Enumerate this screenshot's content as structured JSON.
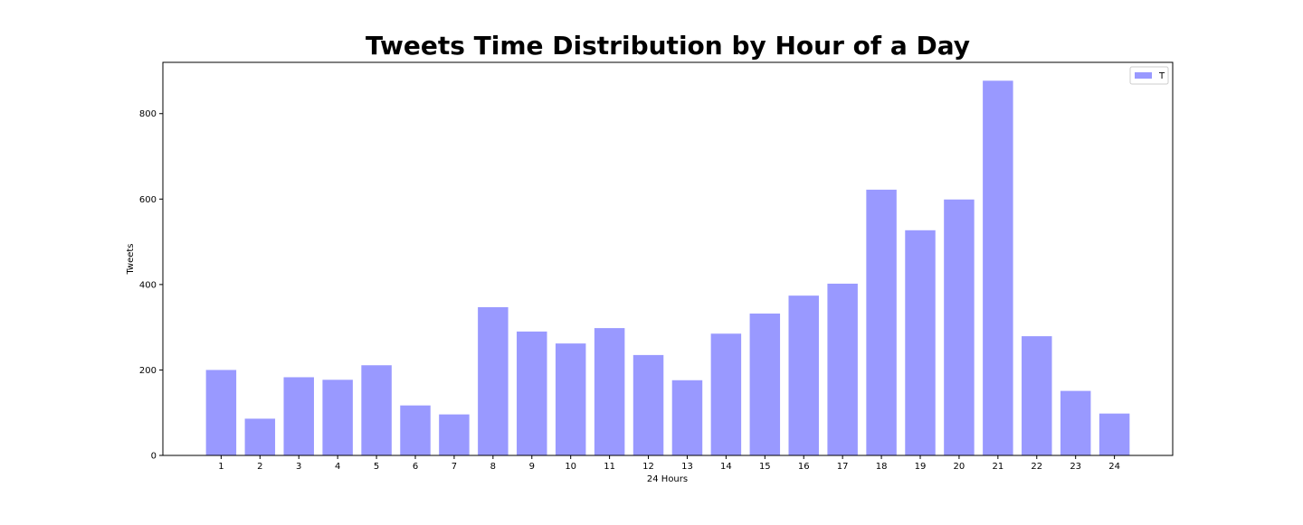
{
  "chart_data": {
    "type": "bar",
    "title": "Tweets Time Distribution by Hour of a Day",
    "xlabel": "24 Hours",
    "ylabel": "Tweets",
    "categories": [
      "1",
      "2",
      "3",
      "4",
      "5",
      "6",
      "7",
      "8",
      "9",
      "10",
      "11",
      "12",
      "13",
      "14",
      "15",
      "16",
      "17",
      "18",
      "19",
      "20",
      "21",
      "22",
      "23",
      "24"
    ],
    "series": [
      {
        "name": "T",
        "values": [
          200,
          86,
          183,
          177,
          211,
          117,
          96,
          347,
          290,
          262,
          298,
          235,
          176,
          285,
          332,
          374,
          402,
          622,
          527,
          599,
          877,
          279,
          151,
          98
        ]
      }
    ],
    "ylim": [
      0,
      920
    ],
    "yticks": [
      0,
      200,
      400,
      600,
      800
    ],
    "grid": false,
    "legend_position": "top-right",
    "bar_color": "#9999ff"
  }
}
